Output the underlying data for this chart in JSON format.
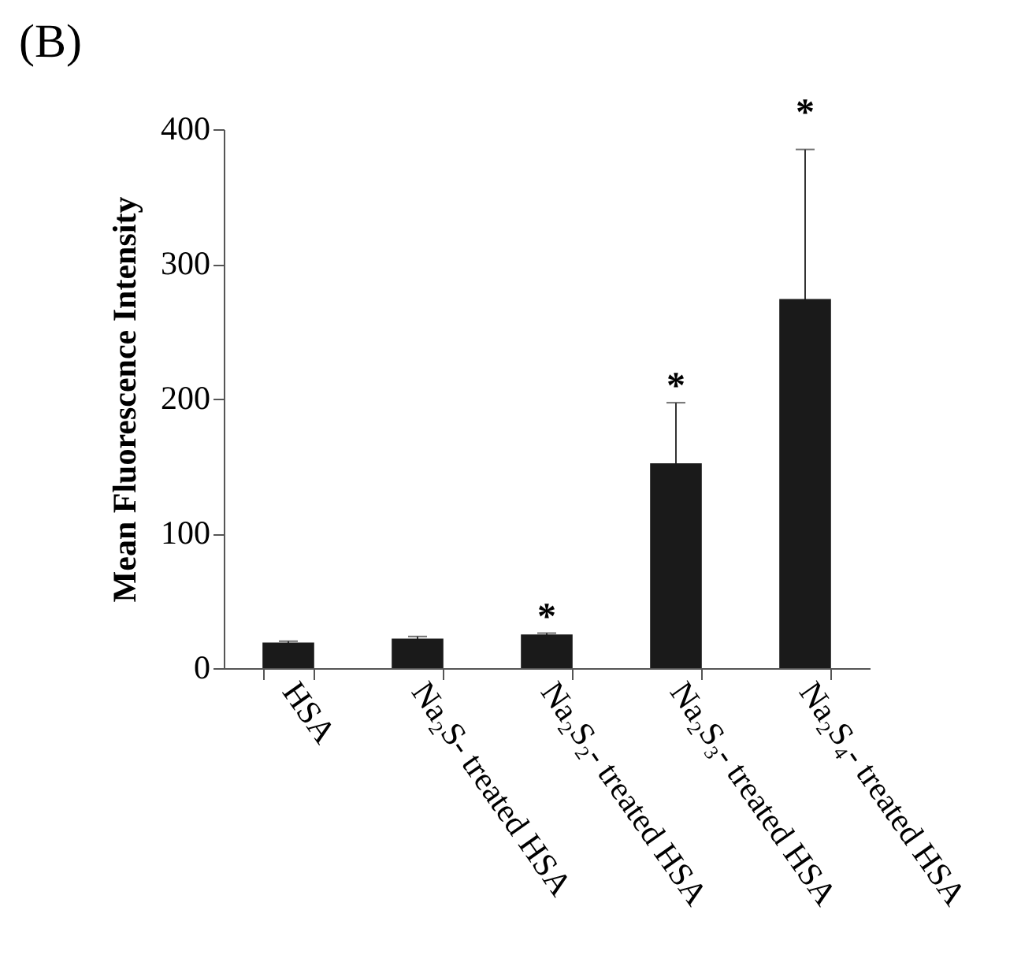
{
  "chart_data": {
    "type": "bar",
    "title": "(B)",
    "ylabel": "Mean Fluorescence Intensity",
    "categories": [
      "HSA",
      "Na₂S- treated HSA",
      "Na₂S₂- treated HSA",
      "Na₂S₃- treated HSA",
      "Na₂S₄- treated HSA"
    ],
    "values": [
      19,
      22,
      25,
      152,
      274
    ],
    "color": "#1a1a1a",
    "errors": [
      1,
      1.5,
      1,
      45,
      111
    ],
    "ylim": [
      0,
      400
    ],
    "yticks": [
      0,
      100,
      200,
      300,
      400
    ],
    "grid": false,
    "annotations": [
      {
        "text": "*",
        "x": "Na₂S₂- treated HSA",
        "y": 25
      },
      {
        "text": "*",
        "x": "Na₂S₃- treated HSA",
        "y": 152
      },
      "*"
    ]
  }
}
